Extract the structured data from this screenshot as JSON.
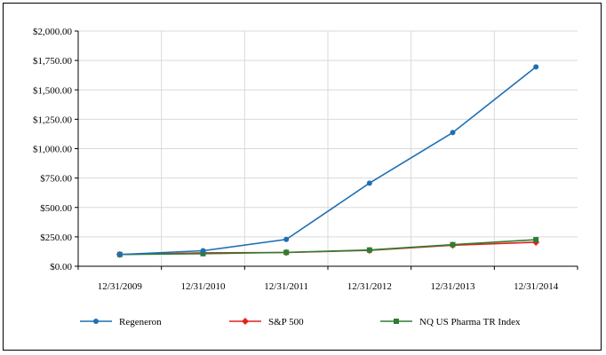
{
  "chart_data": {
    "type": "line",
    "categories": [
      "12/31/2009",
      "12/31/2010",
      "12/31/2011",
      "12/31/2012",
      "12/31/2013",
      "12/31/2014"
    ],
    "series": [
      {
        "name": "Regeneron",
        "color": "#1F6FB5",
        "marker": "circle",
        "values": [
          100,
          132,
          228,
          707,
          1137,
          1695
        ]
      },
      {
        "name": "S&P 500",
        "color": "#E2231A",
        "marker": "diamond",
        "values": [
          100,
          114,
          117,
          135,
          179,
          204
        ]
      },
      {
        "name": "NQ US Pharma TR Index",
        "color": "#2E7D32",
        "marker": "square",
        "values": [
          100,
          107,
          118,
          138,
          184,
          226
        ]
      }
    ],
    "y_ticks": [
      "$0.00",
      "$250.00",
      "$500.00",
      "$750.00",
      "$1,000.00",
      "$1,250.00",
      "$1,500.00",
      "$1,750.00",
      "$2,000.00"
    ],
    "ylim": [
      0,
      2000
    ],
    "grid": true,
    "legend_position": "bottom"
  }
}
